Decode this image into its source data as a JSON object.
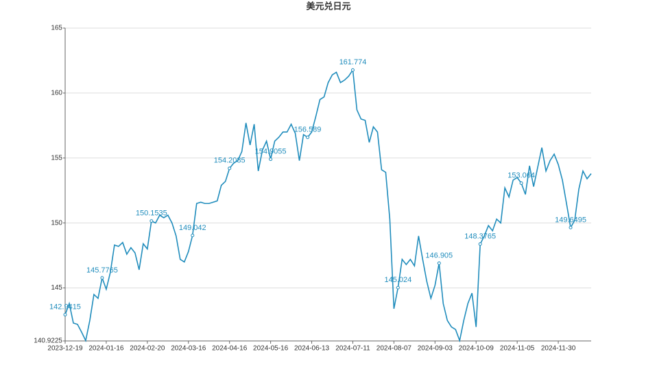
{
  "chart_data": {
    "type": "line",
    "title": "美元兑日元",
    "color": "#1f8cbc",
    "grid": true,
    "ylim": [
      140.9225,
      165
    ],
    "yticks": [
      140.9225,
      145,
      150,
      155,
      160,
      165
    ],
    "categories": [
      "2023-12-19",
      null,
      null,
      null,
      null,
      null,
      null,
      null,
      null,
      null,
      "2024-01-16",
      null,
      null,
      null,
      null,
      null,
      null,
      null,
      null,
      null,
      "2024-02-20",
      null,
      null,
      null,
      null,
      null,
      null,
      null,
      null,
      null,
      "2024-03-16",
      null,
      null,
      null,
      null,
      null,
      null,
      null,
      null,
      null,
      "2024-04-16",
      null,
      null,
      null,
      null,
      null,
      null,
      null,
      null,
      null,
      "2024-05-16",
      null,
      null,
      null,
      null,
      null,
      null,
      null,
      null,
      null,
      "2024-06-13",
      null,
      null,
      null,
      null,
      null,
      null,
      null,
      null,
      null,
      "2024-07-11",
      null,
      null,
      null,
      null,
      null,
      null,
      null,
      null,
      null,
      "2024-08-07",
      null,
      null,
      null,
      null,
      null,
      null,
      null,
      null,
      null,
      "2024-09-03",
      null,
      null,
      null,
      null,
      null,
      null,
      null,
      null,
      null,
      "2024-10-09",
      null,
      null,
      null,
      null,
      null,
      null,
      null,
      null,
      null,
      "2024-11-05",
      null,
      null,
      null,
      null,
      null,
      null,
      null,
      null,
      null,
      "2024-11-30",
      null,
      null,
      null,
      null,
      null,
      null,
      null,
      null
    ],
    "values": [
      142.9415,
      143.8,
      142.3,
      142.2,
      141.6,
      140.95,
      142.5,
      144.5,
      144.2,
      145.7765,
      144.9,
      146.2,
      148.3,
      148.2,
      148.5,
      147.6,
      148.1,
      147.7,
      146.4,
      148.4,
      148.0,
      150.1535,
      150.0,
      150.6,
      150.4,
      150.6,
      150.0,
      149.0,
      147.2,
      147.0,
      147.8,
      149.042,
      151.5,
      151.6,
      151.5,
      151.5,
      151.6,
      151.7,
      152.9,
      153.2,
      154.2085,
      154.6,
      154.8,
      155.5,
      157.7,
      156.0,
      157.6,
      154.0,
      155.6,
      156.3,
      154.9055,
      156.3,
      156.6,
      157.0,
      157.0,
      157.6,
      156.9,
      154.8,
      156.8,
      156.589,
      157.0,
      158.2,
      159.5,
      159.7,
      160.8,
      161.4,
      161.6,
      160.8,
      161.0,
      161.3,
      161.774,
      158.7,
      158.0,
      157.9,
      156.2,
      157.4,
      157.0,
      154.1,
      153.9,
      150.3,
      143.4,
      145.024,
      147.2,
      146.8,
      147.2,
      146.7,
      149.0,
      147.2,
      145.5,
      144.2,
      145.2,
      146.905,
      143.8,
      142.5,
      142.0,
      141.8,
      140.95,
      142.5,
      143.8,
      144.6,
      142.0,
      148.3765,
      149.0,
      149.8,
      149.4,
      150.3,
      150.0,
      152.7,
      152.0,
      153.3,
      153.5,
      153.064,
      152.2,
      154.4,
      152.8,
      154.3,
      155.8,
      154.0,
      154.8,
      155.3,
      154.5,
      153.3,
      151.5,
      149.6495,
      150.2,
      152.6,
      154.0,
      153.4,
      153.8
    ],
    "value_labels": [
      "142.9415",
      null,
      null,
      null,
      null,
      null,
      null,
      null,
      null,
      "145.7765",
      null,
      null,
      null,
      null,
      null,
      null,
      null,
      null,
      null,
      null,
      null,
      "150.1535",
      null,
      null,
      null,
      null,
      null,
      null,
      null,
      null,
      null,
      "149.042",
      null,
      null,
      null,
      null,
      null,
      null,
      null,
      null,
      "154.2085",
      null,
      null,
      null,
      null,
      null,
      null,
      null,
      null,
      null,
      "154.9055",
      null,
      null,
      null,
      null,
      null,
      null,
      null,
      null,
      "156.589",
      null,
      null,
      null,
      null,
      null,
      null,
      null,
      null,
      null,
      null,
      "161.774",
      null,
      null,
      null,
      null,
      null,
      null,
      null,
      null,
      null,
      null,
      "145.024",
      null,
      null,
      null,
      null,
      null,
      null,
      null,
      null,
      null,
      "146.905",
      null,
      null,
      null,
      null,
      null,
      null,
      null,
      null,
      null,
      "148.3765",
      null,
      null,
      null,
      null,
      null,
      null,
      null,
      null,
      null,
      "153.064",
      null,
      null,
      null,
      null,
      null,
      null,
      null,
      null,
      null,
      null,
      null,
      "149.6495",
      null,
      null,
      null,
      null,
      null
    ]
  }
}
